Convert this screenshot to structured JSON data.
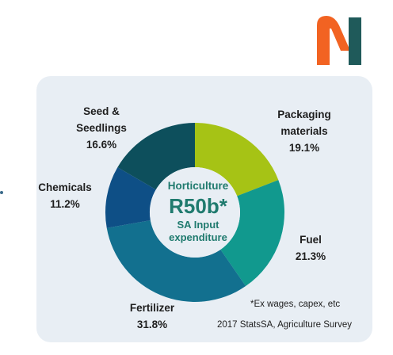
{
  "logo": {
    "colors": {
      "n_left": "#f26322",
      "n_right": "#1f5a5a"
    }
  },
  "chart_data": {
    "type": "pie",
    "donut": true,
    "categories": [
      "Packaging materials",
      "Fuel",
      "Fertilizer",
      "Chemicals",
      "Seed & Seedlings"
    ],
    "values": [
      19.1,
      21.3,
      31.8,
      11.2,
      16.6
    ],
    "value_labels": [
      "19.1%",
      "21.3%",
      "31.8%",
      "11.2%",
      "16.6%"
    ],
    "label_lines": [
      [
        "Packaging",
        "materials"
      ],
      [
        "Fuel"
      ],
      [
        "Fertilizer"
      ],
      [
        "Chemicals"
      ],
      [
        "Seed &",
        "Seedlings"
      ]
    ],
    "colors": [
      "#a6c315",
      "#11998e",
      "#12708f",
      "#0e4f86",
      "#0d4f5c"
    ],
    "center": {
      "line1": "Horticulture",
      "value": "R50b*",
      "line2": "SA Input",
      "line3": "expenditure"
    }
  },
  "notes": {
    "footnote": "*Ex wages, capex, etc",
    "source": "2017 StatsSA, Agriculture Survey"
  }
}
